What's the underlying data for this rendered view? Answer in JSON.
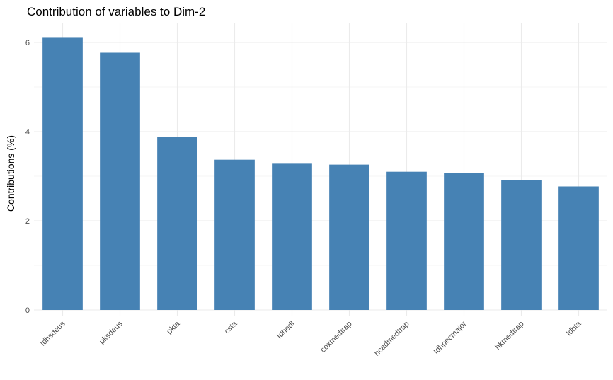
{
  "chart_data": {
    "type": "bar",
    "title": "Contribution of variables to Dim-2",
    "xlabel": "",
    "ylabel": "Contributions (%)",
    "categories": [
      "Idhsdeus",
      "pksdeus",
      "pkta",
      "csta",
      "Idhedl",
      "coxmedtrap",
      "hcadmedtrap",
      "Idhpecmajor",
      "hkmedtrap",
      "Idhta"
    ],
    "values": [
      6.12,
      5.77,
      3.88,
      3.37,
      3.28,
      3.26,
      3.1,
      3.07,
      2.91,
      2.77
    ],
    "ylim": [
      0,
      6.3
    ],
    "yticks": [
      0,
      2,
      4,
      6
    ],
    "reference_line": {
      "value": 0.85,
      "style": "dashed",
      "color": "#e31a1c"
    },
    "grid": true,
    "legend": "none",
    "colors": {
      "bar": "#4682b4",
      "grid": "#ebebeb"
    }
  }
}
